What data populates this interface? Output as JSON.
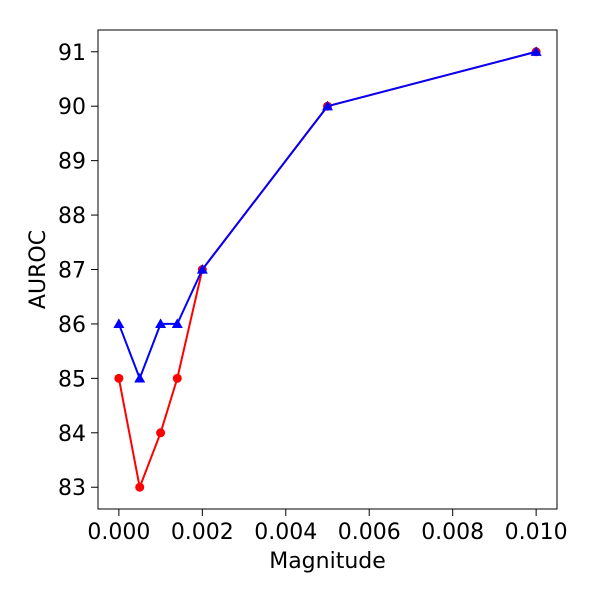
{
  "chart_data": {
    "type": "line",
    "title": "",
    "xlabel": "Magnitude",
    "ylabel": "AUROC",
    "xlim": [
      -0.0005,
      0.0105
    ],
    "ylim": [
      82.6,
      91.4
    ],
    "xticks": [
      0.0,
      0.002,
      0.004,
      0.006,
      0.008,
      0.01
    ],
    "xtick_labels": [
      "0.000",
      "0.002",
      "0.004",
      "0.006",
      "0.008",
      "0.010"
    ],
    "yticks": [
      83,
      84,
      85,
      86,
      87,
      88,
      89,
      90,
      91
    ],
    "ytick_labels": [
      "83",
      "84",
      "85",
      "86",
      "87",
      "88",
      "89",
      "90",
      "91"
    ],
    "grid": false,
    "legend": "none",
    "series": [
      {
        "color": "#ff0000",
        "marker": "circle",
        "x": [
          0.0,
          0.0005,
          0.001,
          0.0014,
          0.002,
          0.005,
          0.01
        ],
        "y": [
          85,
          83,
          84,
          85,
          87,
          90,
          91
        ]
      },
      {
        "color": "#0000ff",
        "marker": "triangle",
        "x": [
          0.0,
          0.0005,
          0.001,
          0.0014,
          0.002,
          0.005,
          0.01
        ],
        "y": [
          86,
          85,
          86,
          86,
          87,
          90,
          91
        ]
      }
    ]
  }
}
